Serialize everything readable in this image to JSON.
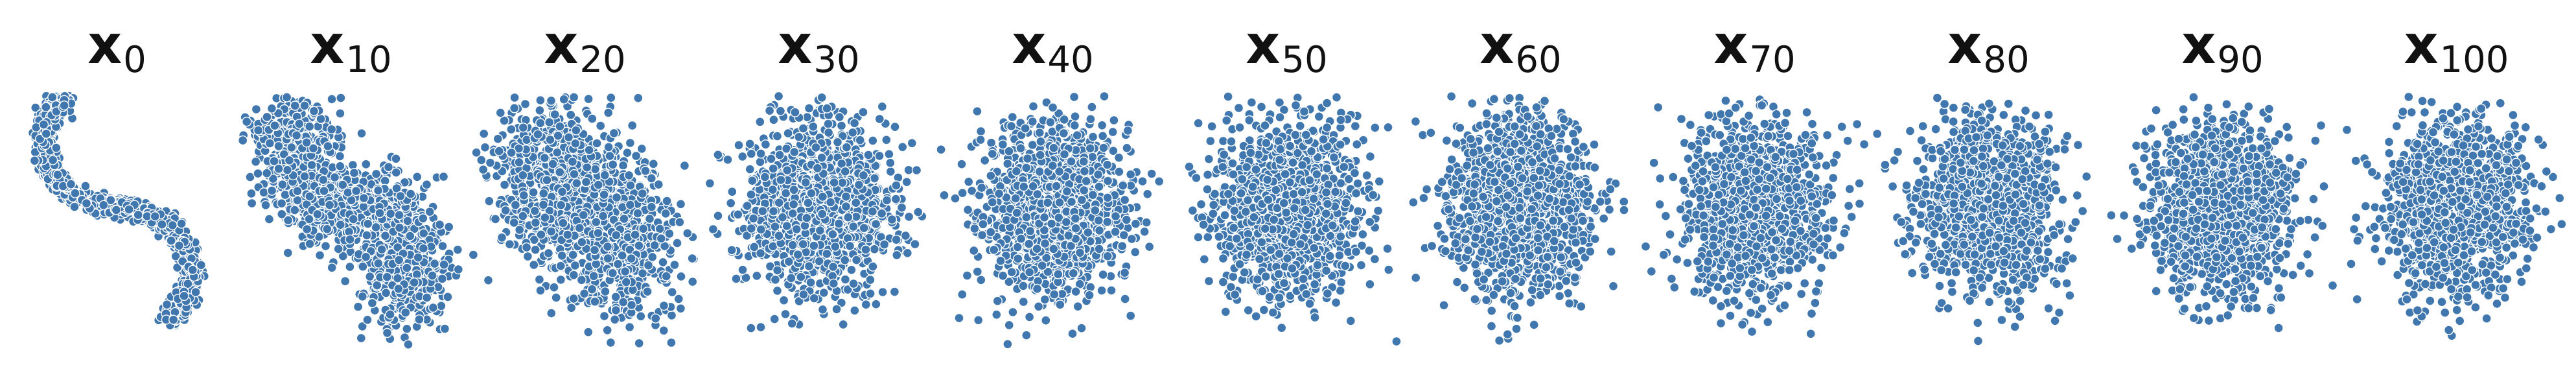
{
  "figure": {
    "panels": [
      {
        "symbol": "x",
        "subscript": "0",
        "step": 0,
        "pattern": "S-curve"
      },
      {
        "symbol": "x",
        "subscript": "10",
        "step": 10,
        "pattern": "S-curve with partial fill-in"
      },
      {
        "symbol": "x",
        "subscript": "20",
        "step": 20,
        "pattern": "mostly filled blob"
      },
      {
        "symbol": "x",
        "subscript": "30",
        "step": 30,
        "pattern": "gaussian blob"
      },
      {
        "symbol": "x",
        "subscript": "40",
        "step": 40,
        "pattern": "gaussian blob"
      },
      {
        "symbol": "x",
        "subscript": "50",
        "step": 50,
        "pattern": "gaussian blob"
      },
      {
        "symbol": "x",
        "subscript": "60",
        "step": 60,
        "pattern": "gaussian blob"
      },
      {
        "symbol": "x",
        "subscript": "70",
        "step": 70,
        "pattern": "gaussian blob"
      },
      {
        "symbol": "x",
        "subscript": "80",
        "step": 80,
        "pattern": "gaussian blob"
      },
      {
        "symbol": "x",
        "subscript": "90",
        "step": 90,
        "pattern": "gaussian blob"
      },
      {
        "symbol": "x",
        "subscript": "100",
        "step": 100,
        "pattern": "gaussian blob"
      }
    ],
    "point_color": "#3f77ae",
    "point_edge_color": "#ffffff",
    "background": "#ffffff"
  }
}
